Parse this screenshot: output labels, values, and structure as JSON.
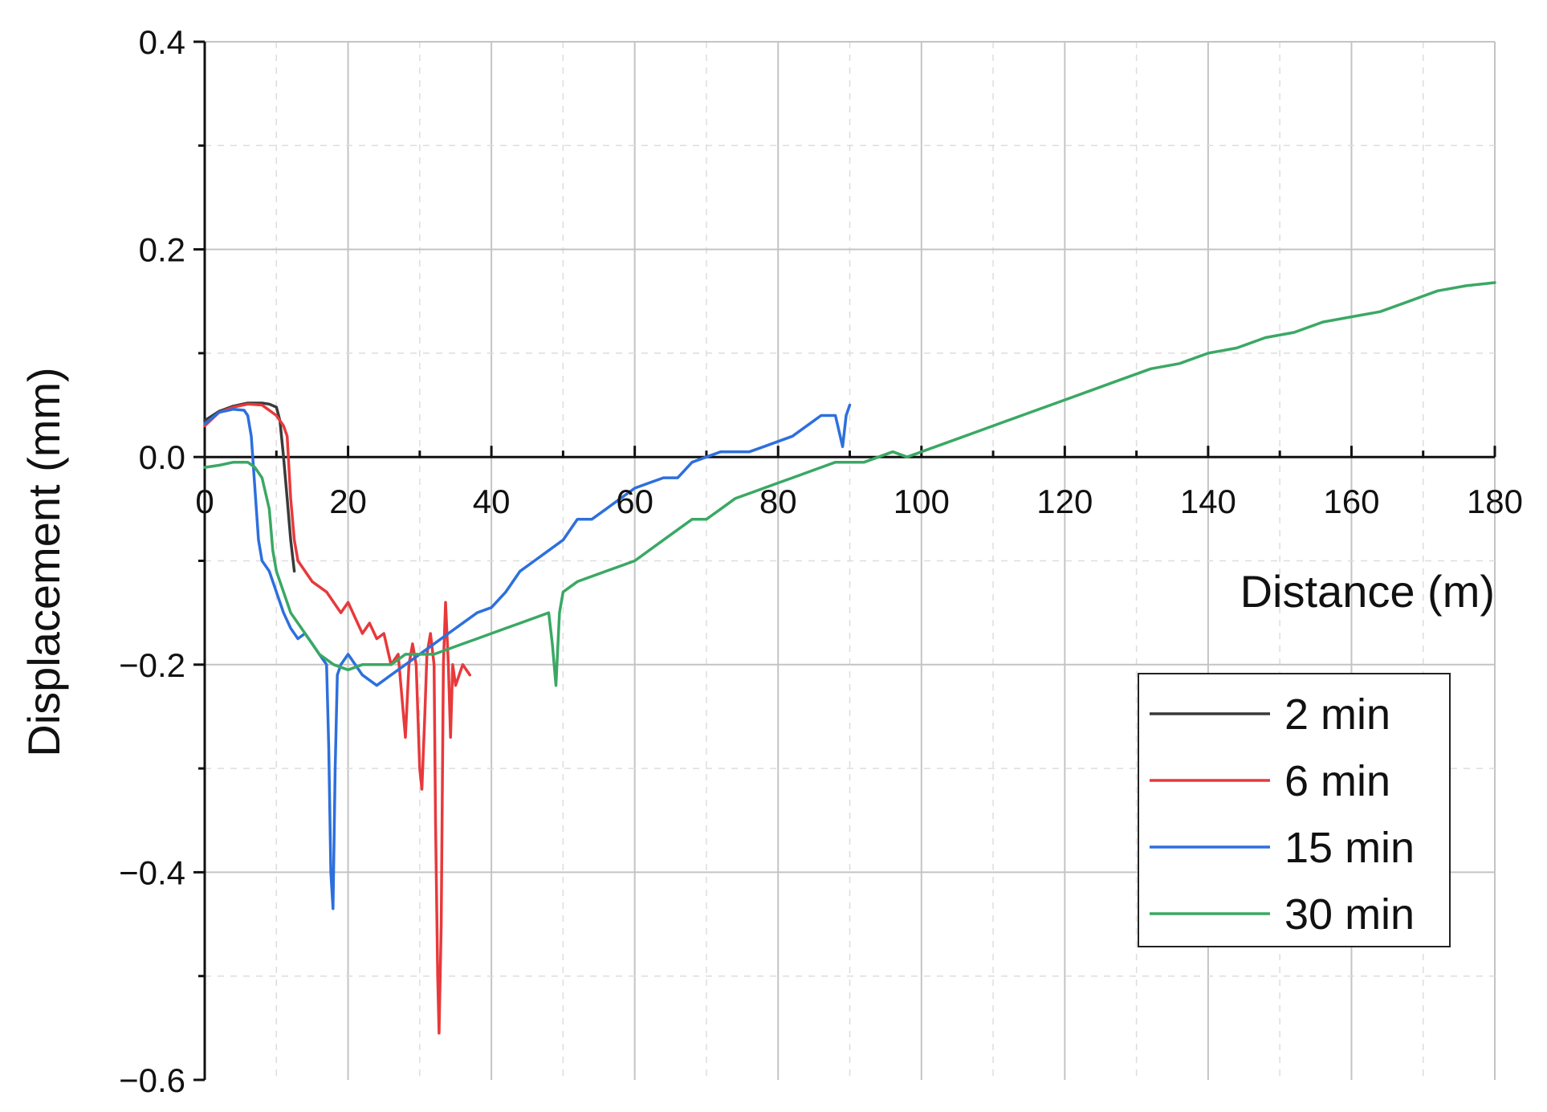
{
  "chart_data": {
    "type": "line",
    "xlabel": "Distance (m)",
    "ylabel": "Displacement (mm)",
    "xlim": [
      0,
      180
    ],
    "ylim": [
      -0.6,
      0.4
    ],
    "x_ticks": [
      0,
      20,
      40,
      60,
      80,
      100,
      120,
      140,
      160,
      180
    ],
    "x_tick_labels": [
      "0",
      "20",
      "40",
      "60",
      "80",
      "100",
      "120",
      "140",
      "160",
      "180"
    ],
    "y_ticks": [
      0.4,
      0.2,
      0.0,
      -0.2,
      -0.4,
      -0.6
    ],
    "y_tick_labels": [
      "0.4",
      "0.2",
      "0.0",
      "−0.2",
      "−0.4",
      "−0.6"
    ],
    "grid": true,
    "legend_position": "bottom-right",
    "series": [
      {
        "name": "2 min",
        "color": "#3a3a3a",
        "points": [
          [
            0,
            0.035
          ],
          [
            2,
            0.044
          ],
          [
            4,
            0.049
          ],
          [
            6,
            0.052
          ],
          [
            8,
            0.052
          ],
          [
            9,
            0.051
          ],
          [
            10,
            0.048
          ],
          [
            10.5,
            0.035
          ],
          [
            11,
            0.0
          ],
          [
            11.5,
            -0.04
          ],
          [
            12,
            -0.08
          ],
          [
            12.5,
            -0.11
          ]
        ]
      },
      {
        "name": "6 min",
        "color": "#e8393b",
        "points": [
          [
            0,
            0.03
          ],
          [
            2,
            0.043
          ],
          [
            4,
            0.048
          ],
          [
            6,
            0.051
          ],
          [
            8,
            0.05
          ],
          [
            10,
            0.04
          ],
          [
            11,
            0.03
          ],
          [
            11.5,
            0.02
          ],
          [
            12,
            -0.04
          ],
          [
            12.5,
            -0.08
          ],
          [
            13,
            -0.1
          ],
          [
            14,
            -0.11
          ],
          [
            15,
            -0.12
          ],
          [
            16,
            -0.125
          ],
          [
            17,
            -0.13
          ],
          [
            18,
            -0.14
          ],
          [
            19,
            -0.15
          ],
          [
            20,
            -0.14
          ],
          [
            21,
            -0.155
          ],
          [
            22,
            -0.17
          ],
          [
            23,
            -0.16
          ],
          [
            24,
            -0.175
          ],
          [
            25,
            -0.17
          ],
          [
            26,
            -0.2
          ],
          [
            27,
            -0.19
          ],
          [
            27.5,
            -0.23
          ],
          [
            28,
            -0.27
          ],
          [
            28.5,
            -0.2
          ],
          [
            29,
            -0.18
          ],
          [
            29.5,
            -0.2
          ],
          [
            30,
            -0.3
          ],
          [
            30.3,
            -0.32
          ],
          [
            30.7,
            -0.25
          ],
          [
            31,
            -0.19
          ],
          [
            31.5,
            -0.17
          ],
          [
            32,
            -0.2
          ],
          [
            32.2,
            -0.35
          ],
          [
            32.5,
            -0.5
          ],
          [
            32.7,
            -0.555
          ],
          [
            33,
            -0.45
          ],
          [
            33.3,
            -0.2
          ],
          [
            33.6,
            -0.14
          ],
          [
            34,
            -0.2
          ],
          [
            34.3,
            -0.27
          ],
          [
            34.6,
            -0.2
          ],
          [
            35,
            -0.22
          ],
          [
            36,
            -0.2
          ],
          [
            37,
            -0.21
          ]
        ]
      },
      {
        "name": "15 min",
        "color": "#2d6fdd",
        "points": [
          [
            0,
            0.032
          ],
          [
            2,
            0.043
          ],
          [
            4,
            0.046
          ],
          [
            5.5,
            0.045
          ],
          [
            6,
            0.04
          ],
          [
            6.5,
            0.02
          ],
          [
            7,
            -0.03
          ],
          [
            7.5,
            -0.08
          ],
          [
            8,
            -0.1
          ],
          [
            9,
            -0.11
          ],
          [
            10,
            -0.13
          ],
          [
            11,
            -0.15
          ],
          [
            12,
            -0.165
          ],
          [
            13,
            -0.175
          ],
          [
            14,
            -0.17
          ],
          [
            15,
            -0.18
          ],
          [
            16,
            -0.19
          ],
          [
            17,
            -0.2
          ],
          [
            17.3,
            -0.28
          ],
          [
            17.6,
            -0.4
          ],
          [
            17.9,
            -0.435
          ],
          [
            18.2,
            -0.3
          ],
          [
            18.5,
            -0.21
          ],
          [
            19,
            -0.2
          ],
          [
            20,
            -0.19
          ],
          [
            22,
            -0.21
          ],
          [
            24,
            -0.22
          ],
          [
            26,
            -0.21
          ],
          [
            28,
            -0.2
          ],
          [
            30,
            -0.19
          ],
          [
            32,
            -0.18
          ],
          [
            34,
            -0.17
          ],
          [
            36,
            -0.16
          ],
          [
            38,
            -0.15
          ],
          [
            40,
            -0.145
          ],
          [
            42,
            -0.13
          ],
          [
            44,
            -0.11
          ],
          [
            46,
            -0.1
          ],
          [
            48,
            -0.09
          ],
          [
            50,
            -0.08
          ],
          [
            52,
            -0.06
          ],
          [
            54,
            -0.06
          ],
          [
            56,
            -0.05
          ],
          [
            58,
            -0.04
          ],
          [
            60,
            -0.03
          ],
          [
            62,
            -0.025
          ],
          [
            64,
            -0.02
          ],
          [
            66,
            -0.02
          ],
          [
            68,
            -0.005
          ],
          [
            70,
            0.0
          ],
          [
            72,
            0.005
          ],
          [
            74,
            0.005
          ],
          [
            76,
            0.005
          ],
          [
            78,
            0.01
          ],
          [
            80,
            0.015
          ],
          [
            82,
            0.02
          ],
          [
            84,
            0.03
          ],
          [
            86,
            0.04
          ],
          [
            88,
            0.04
          ],
          [
            89,
            0.01
          ],
          [
            89.5,
            0.04
          ],
          [
            90,
            0.05
          ]
        ]
      },
      {
        "name": "30 min",
        "color": "#3aa864",
        "points": [
          [
            0,
            -0.01
          ],
          [
            2,
            -0.008
          ],
          [
            4,
            -0.005
          ],
          [
            6,
            -0.005
          ],
          [
            7,
            -0.01
          ],
          [
            8,
            -0.02
          ],
          [
            9,
            -0.05
          ],
          [
            9.5,
            -0.09
          ],
          [
            10,
            -0.11
          ],
          [
            11,
            -0.13
          ],
          [
            12,
            -0.15
          ],
          [
            13,
            -0.16
          ],
          [
            14,
            -0.17
          ],
          [
            15,
            -0.18
          ],
          [
            16,
            -0.19
          ],
          [
            18,
            -0.2
          ],
          [
            20,
            -0.205
          ],
          [
            22,
            -0.2
          ],
          [
            24,
            -0.2
          ],
          [
            26,
            -0.2
          ],
          [
            28,
            -0.19
          ],
          [
            30,
            -0.19
          ],
          [
            32,
            -0.19
          ],
          [
            34,
            -0.185
          ],
          [
            36,
            -0.18
          ],
          [
            38,
            -0.175
          ],
          [
            40,
            -0.17
          ],
          [
            42,
            -0.165
          ],
          [
            44,
            -0.16
          ],
          [
            46,
            -0.155
          ],
          [
            48,
            -0.15
          ],
          [
            48.5,
            -0.18
          ],
          [
            49,
            -0.22
          ],
          [
            49.5,
            -0.15
          ],
          [
            50,
            -0.13
          ],
          [
            52,
            -0.12
          ],
          [
            54,
            -0.115
          ],
          [
            56,
            -0.11
          ],
          [
            58,
            -0.105
          ],
          [
            60,
            -0.1
          ],
          [
            62,
            -0.09
          ],
          [
            64,
            -0.08
          ],
          [
            66,
            -0.07
          ],
          [
            68,
            -0.06
          ],
          [
            70,
            -0.06
          ],
          [
            72,
            -0.05
          ],
          [
            74,
            -0.04
          ],
          [
            76,
            -0.035
          ],
          [
            78,
            -0.03
          ],
          [
            80,
            -0.025
          ],
          [
            82,
            -0.02
          ],
          [
            84,
            -0.015
          ],
          [
            86,
            -0.01
          ],
          [
            88,
            -0.005
          ],
          [
            90,
            -0.005
          ],
          [
            92,
            -0.005
          ],
          [
            94,
            0.0
          ],
          [
            96,
            0.005
          ],
          [
            98,
            0.0
          ],
          [
            100,
            0.005
          ],
          [
            104,
            0.015
          ],
          [
            108,
            0.025
          ],
          [
            112,
            0.035
          ],
          [
            116,
            0.045
          ],
          [
            120,
            0.055
          ],
          [
            124,
            0.065
          ],
          [
            128,
            0.075
          ],
          [
            132,
            0.085
          ],
          [
            136,
            0.09
          ],
          [
            140,
            0.1
          ],
          [
            144,
            0.105
          ],
          [
            148,
            0.115
          ],
          [
            152,
            0.12
          ],
          [
            156,
            0.13
          ],
          [
            160,
            0.135
          ],
          [
            164,
            0.14
          ],
          [
            168,
            0.15
          ],
          [
            172,
            0.16
          ],
          [
            176,
            0.165
          ],
          [
            180,
            0.168
          ]
        ]
      }
    ]
  }
}
